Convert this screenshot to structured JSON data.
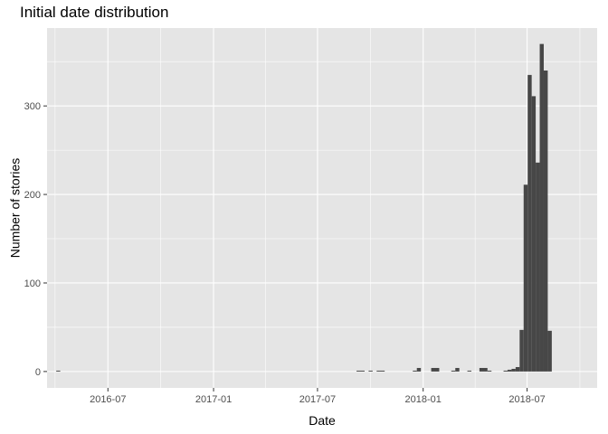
{
  "chart_data": {
    "type": "bar",
    "title": "Initial date distribution",
    "xlabel": "Date",
    "ylabel": "Number of stories",
    "xlim": [
      "2016-03-17",
      "2018-10-31"
    ],
    "ylim": [
      -18.5,
      388
    ],
    "x_ticks": [
      "2016-07",
      "2017-01",
      "2017-07",
      "2018-01",
      "2018-07"
    ],
    "y_ticks": [
      0,
      100,
      200,
      300
    ],
    "grid": true,
    "bar_color": "#474747",
    "panel_color": "#e5e5e5",
    "grid_color": "#ffffff",
    "bins": [
      {
        "start": "2016-04-02",
        "end": "2016-04-09",
        "value": 1
      },
      {
        "start": "2017-09-07",
        "end": "2017-09-21",
        "value": 1
      },
      {
        "start": "2017-09-28",
        "end": "2017-10-05",
        "value": 1
      },
      {
        "start": "2017-10-12",
        "end": "2017-10-26",
        "value": 1
      },
      {
        "start": "2017-12-14",
        "end": "2017-12-21",
        "value": 1
      },
      {
        "start": "2017-12-21",
        "end": "2017-12-28",
        "value": 4
      },
      {
        "start": "2018-01-15",
        "end": "2018-01-29",
        "value": 4
      },
      {
        "start": "2018-02-19",
        "end": "2018-02-26",
        "value": 1
      },
      {
        "start": "2018-02-26",
        "end": "2018-03-05",
        "value": 4
      },
      {
        "start": "2018-03-19",
        "end": "2018-03-26",
        "value": 1
      },
      {
        "start": "2018-04-09",
        "end": "2018-04-23",
        "value": 4
      },
      {
        "start": "2018-04-23",
        "end": "2018-04-30",
        "value": 1
      },
      {
        "start": "2018-05-21",
        "end": "2018-05-28",
        "value": 1
      },
      {
        "start": "2018-05-28",
        "end": "2018-06-04",
        "value": 2
      },
      {
        "start": "2018-06-04",
        "end": "2018-06-11",
        "value": 3
      },
      {
        "start": "2018-06-11",
        "end": "2018-06-18",
        "value": 5
      },
      {
        "start": "2018-06-18",
        "end": "2018-06-25",
        "value": 47
      },
      {
        "start": "2018-06-25",
        "end": "2018-07-02",
        "value": 211
      },
      {
        "start": "2018-07-02",
        "end": "2018-07-09",
        "value": 335
      },
      {
        "start": "2018-07-09",
        "end": "2018-07-16",
        "value": 311
      },
      {
        "start": "2018-07-16",
        "end": "2018-07-23",
        "value": 236
      },
      {
        "start": "2018-07-23",
        "end": "2018-07-30",
        "value": 370
      },
      {
        "start": "2018-07-30",
        "end": "2018-08-06",
        "value": 340
      },
      {
        "start": "2018-08-06",
        "end": "2018-08-13",
        "value": 46
      }
    ]
  }
}
